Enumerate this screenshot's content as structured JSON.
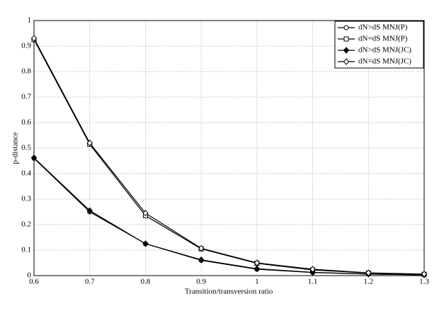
{
  "chart_data": {
    "type": "line",
    "x_label": "Transition/transversion ratio",
    "y_label": "p-distance",
    "x": [
      0.6,
      0.7,
      0.8,
      0.9,
      1,
      1.1,
      1.2,
      1.3
    ],
    "series": [
      {
        "name": "dN>dS MNJ(P)",
        "color": "#000000",
        "marker": "circle",
        "values": [
          0.46,
          0.25,
          0.125,
          0.06,
          0.025,
          0.012,
          0.006,
          0.003
        ]
      },
      {
        "name": "dN=dS MNJ(P)",
        "color": "#000000",
        "marker": "square",
        "values": [
          0.925,
          0.515,
          0.235,
          0.105,
          0.048,
          0.022,
          0.01,
          0.005
        ]
      },
      {
        "name": "dN>dS MNJ(JC)",
        "color": "#000000",
        "marker": "diamond-filled",
        "values": [
          0.462,
          0.255,
          0.125,
          0.062,
          0.027,
          0.013,
          0.006,
          0.003
        ]
      },
      {
        "name": "dN=dS MNJ(JC)",
        "color": "#000000",
        "marker": "diamond",
        "values": [
          0.93,
          0.52,
          0.245,
          0.107,
          0.05,
          0.025,
          0.011,
          0.006
        ]
      }
    ],
    "xlim": [
      0.6,
      1.3
    ],
    "xticks": [
      0.6,
      0.7,
      0.8,
      0.9,
      1,
      1.1,
      1.2,
      1.3
    ],
    "ylim": [
      0,
      1
    ],
    "yticks": [
      0,
      0.1,
      0.2,
      0.3,
      0.4,
      0.5,
      0.6,
      0.7,
      0.8,
      0.9,
      1
    ],
    "grid": true,
    "legend": "upper right"
  }
}
